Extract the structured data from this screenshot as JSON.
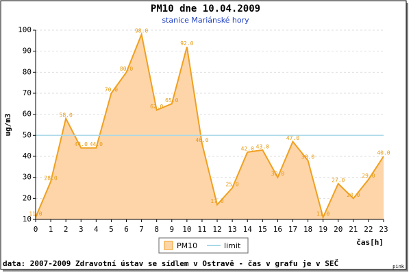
{
  "chart_data": {
    "type": "area",
    "title": "PM10 dne 10.04.2009",
    "subtitle": "stanice Mariánské hory",
    "y_label": "ug/m3",
    "x_label": "čas[h]",
    "footer": "data: 2007-2009 Zdravotní ústav se sídlem v Ostravě - čas v grafu je v SEČ",
    "corner_note": "pink",
    "x": [
      0,
      1,
      2,
      3,
      4,
      5,
      6,
      7,
      8,
      9,
      10,
      11,
      12,
      13,
      14,
      15,
      16,
      17,
      18,
      19,
      20,
      21,
      22,
      23
    ],
    "series": [
      {
        "name": "PM10",
        "color": "#f0a020",
        "fill": "#fdd5a9",
        "values": [
          11,
          28,
          58,
          44,
          44,
          70,
          80,
          98,
          62,
          65,
          92,
          46,
          17,
          25,
          42,
          43,
          30,
          47,
          38,
          11,
          27,
          20,
          29,
          40
        ],
        "value_labels": [
          "11.0",
          "28.0",
          "58.0",
          "44.0",
          "44.0",
          "70.0",
          "80.0",
          "98.0",
          "62.0",
          "65.0",
          "92.0",
          "46.0",
          "17.0",
          "25.0",
          "42.0",
          "43.0",
          "30.0",
          "47.0",
          "38.0",
          "11.0",
          "27.0",
          "20.0",
          "29.0",
          "40.0"
        ]
      }
    ],
    "limit": {
      "name": "limit",
      "value": 50,
      "color": "#a8d8e8"
    },
    "xlim": [
      0,
      23
    ],
    "xticks": [
      0,
      1,
      2,
      3,
      4,
      5,
      6,
      7,
      8,
      9,
      10,
      11,
      12,
      13,
      14,
      15,
      16,
      17,
      18,
      19,
      20,
      21,
      22,
      23
    ],
    "ylim": [
      10,
      100
    ],
    "yticks": [
      10,
      20,
      30,
      40,
      50,
      60,
      70,
      80,
      90,
      100
    ],
    "grid": true
  }
}
